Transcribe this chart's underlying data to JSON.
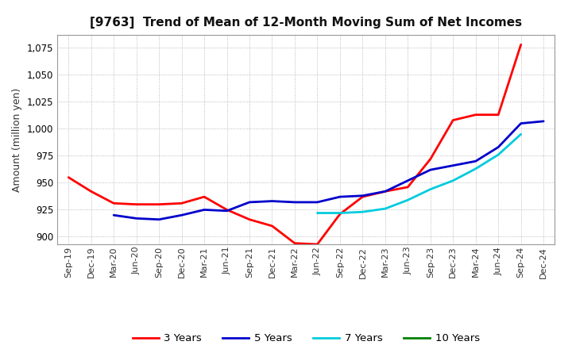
{
  "title": "[9763]  Trend of Mean of 12-Month Moving Sum of Net Incomes",
  "ylabel": "Amount (million yen)",
  "bg_color": "#ffffff",
  "plot_bg_color": "#ffffff",
  "x_labels": [
    "Sep-19",
    "Dec-19",
    "Mar-20",
    "Jun-20",
    "Sep-20",
    "Dec-20",
    "Mar-21",
    "Jun-21",
    "Sep-21",
    "Dec-21",
    "Mar-22",
    "Jun-22",
    "Sep-22",
    "Dec-22",
    "Mar-23",
    "Jun-23",
    "Sep-23",
    "Dec-23",
    "Mar-24",
    "Jun-24",
    "Sep-24",
    "Dec-24"
  ],
  "series": {
    "3 Years": {
      "color": "#ff0000",
      "linewidth": 2.0,
      "data_y": [
        955,
        942,
        931,
        930,
        930,
        931,
        937,
        925,
        916,
        910,
        894,
        893,
        921,
        937,
        942,
        946,
        972,
        1008,
        1013,
        1013,
        1078,
        null
      ]
    },
    "5 Years": {
      "color": "#0000cc",
      "linewidth": 2.0,
      "data_y": [
        null,
        null,
        920,
        917,
        916,
        920,
        925,
        924,
        932,
        933,
        932,
        932,
        937,
        938,
        942,
        952,
        962,
        966,
        970,
        983,
        1005,
        1007
      ]
    },
    "7 Years": {
      "color": "#00ccdd",
      "linewidth": 2.0,
      "data_y": [
        null,
        null,
        null,
        null,
        null,
        null,
        null,
        null,
        null,
        null,
        null,
        922,
        922,
        923,
        926,
        934,
        944,
        952,
        963,
        976,
        995,
        null
      ]
    },
    "10 Years": {
      "color": "#008000",
      "linewidth": 2.0,
      "data_y": [
        null,
        null,
        null,
        null,
        null,
        null,
        null,
        null,
        null,
        null,
        null,
        null,
        null,
        null,
        null,
        null,
        null,
        null,
        null,
        null,
        null,
        null
      ]
    }
  },
  "ylim": [
    893,
    1087
  ],
  "yticks": [
    900,
    925,
    950,
    975,
    1000,
    1025,
    1050,
    1075
  ],
  "legend_labels": [
    "3 Years",
    "5 Years",
    "7 Years",
    "10 Years"
  ],
  "legend_colors": [
    "#ff0000",
    "#0000cc",
    "#00ccdd",
    "#008000"
  ]
}
